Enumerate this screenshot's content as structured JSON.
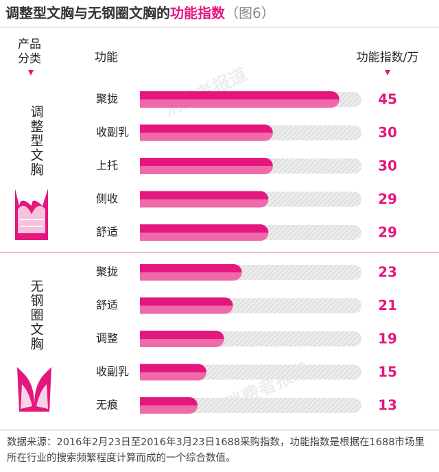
{
  "chart_data": {
    "type": "bar",
    "title": "调整型文胸与无钢圈文胸的",
    "title_highlight": "功能指数",
    "title_suffix": "（图6）",
    "group_header": "产品分类",
    "category_header": "功能",
    "value_header": "功能指数/万",
    "groups": [
      {
        "name": "调整型文胸",
        "categories": [
          "聚拢",
          "收副乳",
          "上托",
          "侧收",
          "舒适"
        ],
        "values": [
          45,
          30,
          30,
          29,
          29
        ]
      },
      {
        "name": "无钢圈文胸",
        "categories": [
          "聚拢",
          "舒适",
          "调整",
          "收副乳",
          "无痕"
        ],
        "values": [
          23,
          21,
          19,
          15,
          13
        ]
      }
    ],
    "xlim": [
      0,
      50
    ],
    "color": "#e4177f",
    "watermark": "消费者报道",
    "source": "数据来源：2016年2月23日至2016年3月23日1688采购指数，功能指数是根据在1688市场里所在行业的搜索频繁程度计算而成的一个综合数值。"
  }
}
